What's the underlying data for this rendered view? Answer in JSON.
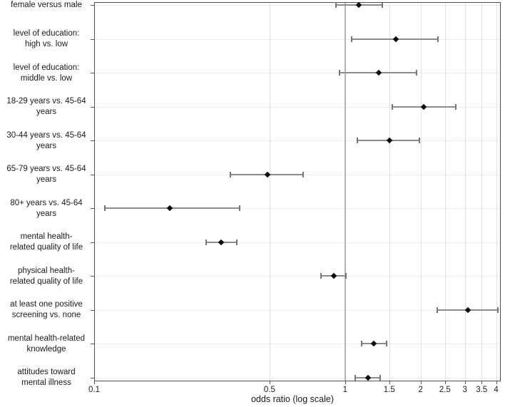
{
  "chart_data": {
    "type": "scatter",
    "subtype": "forest-plot",
    "title": "",
    "xlabel": "odds ratio (log scale)",
    "x_axis": {
      "label": "odds ratio (log scale)",
      "scale": "log",
      "ticks": [
        0.1,
        0.5,
        1,
        1.5,
        2,
        2.5,
        3,
        3.5,
        4
      ],
      "range": [
        0.1,
        4.17
      ],
      "reference_line": 1
    },
    "legend": "none",
    "grid": "on",
    "marker": "diamond",
    "rows": [
      {
        "label": "female versus male",
        "or": 1.13,
        "ci_low": 0.92,
        "ci_high": 1.41
      },
      {
        "label": "level of education:\nhigh vs. low",
        "or": 1.59,
        "ci_low": 1.06,
        "ci_high": 2.35
      },
      {
        "label": "level of education:\nmiddle vs. low",
        "or": 1.36,
        "ci_low": 0.95,
        "ci_high": 1.93
      },
      {
        "label": "18-29 years vs. 45-64\nyears",
        "or": 2.05,
        "ci_low": 1.54,
        "ci_high": 2.76
      },
      {
        "label": "30-44 years vs. 45-64\nyears",
        "or": 1.5,
        "ci_low": 1.12,
        "ci_high": 1.98
      },
      {
        "label": "65-79 years vs. 45-64\nyears",
        "or": 0.49,
        "ci_low": 0.35,
        "ci_high": 0.68
      },
      {
        "label": "80+ years vs. 45-64\nyears",
        "or": 0.2,
        "ci_low": 0.11,
        "ci_high": 0.38
      },
      {
        "label": "mental health-\nrelated quality of life",
        "or": 0.32,
        "ci_low": 0.28,
        "ci_high": 0.37
      },
      {
        "label": "physical health-\nrelated quality of life",
        "or": 0.9,
        "ci_low": 0.8,
        "ci_high": 1.01
      },
      {
        "label": "at least one positive\nscreening vs. none",
        "or": 3.09,
        "ci_low": 2.33,
        "ci_high": 4.06
      },
      {
        "label": "mental health-related\nknowledge",
        "or": 1.3,
        "ci_low": 1.16,
        "ci_high": 1.46
      },
      {
        "label": "attitudes toward\nmental illness",
        "or": 1.23,
        "ci_low": 1.1,
        "ci_high": 1.38
      }
    ],
    "colors": {
      "marker": "#0d0d0d",
      "whisker": "#8c8c8c",
      "reference_line": "#b5b5b5",
      "gridline_vertical": "#e2e2e2",
      "gridline_horizontal": "#ededed",
      "frame": "#4f4f4f"
    }
  }
}
